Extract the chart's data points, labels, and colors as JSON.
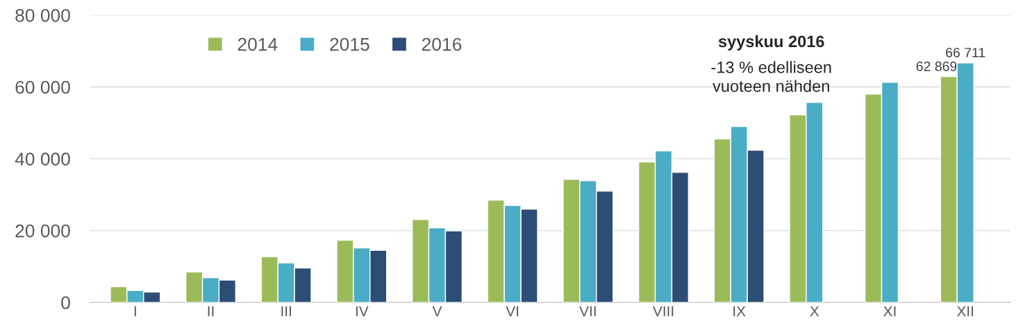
{
  "chart_data": {
    "type": "bar",
    "categories": [
      "I",
      "II",
      "III",
      "IV",
      "V",
      "VI",
      "VII",
      "VIII",
      "IX",
      "X",
      "XI",
      "XII"
    ],
    "series": [
      {
        "name": "2014",
        "color": "#9bbb59",
        "values": [
          4400,
          8500,
          12700,
          17300,
          23100,
          28500,
          34300,
          39100,
          45500,
          52200,
          58000,
          62869
        ],
        "value_labels": [
          null,
          null,
          null,
          null,
          null,
          null,
          null,
          null,
          null,
          null,
          null,
          "62 869"
        ]
      },
      {
        "name": "2015",
        "color": "#4bacc6",
        "values": [
          3300,
          6900,
          11000,
          15200,
          20800,
          27000,
          33900,
          42200,
          49000,
          55700,
          61300,
          66711
        ],
        "value_labels": [
          null,
          null,
          null,
          null,
          null,
          null,
          null,
          null,
          null,
          null,
          null,
          "66 711"
        ]
      },
      {
        "name": "2016",
        "color": "#2c4d75",
        "values": [
          2900,
          6200,
          9600,
          14500,
          19900,
          26000,
          31000,
          36200,
          42400,
          null,
          null,
          null
        ]
      }
    ],
    "ylim": [
      0,
      80000
    ],
    "yticks": [
      {
        "value": 0,
        "label": "0"
      },
      {
        "value": 20000,
        "label": "20 000"
      },
      {
        "value": 40000,
        "label": "40 000"
      },
      {
        "value": 60000,
        "label": "60 000"
      },
      {
        "value": 80000,
        "label": "80 000"
      }
    ],
    "grid": "y",
    "legend": "top left",
    "annotations": [
      "syyskuu 2016",
      "-13 % edelliseen\nvuoteen nähden"
    ]
  }
}
